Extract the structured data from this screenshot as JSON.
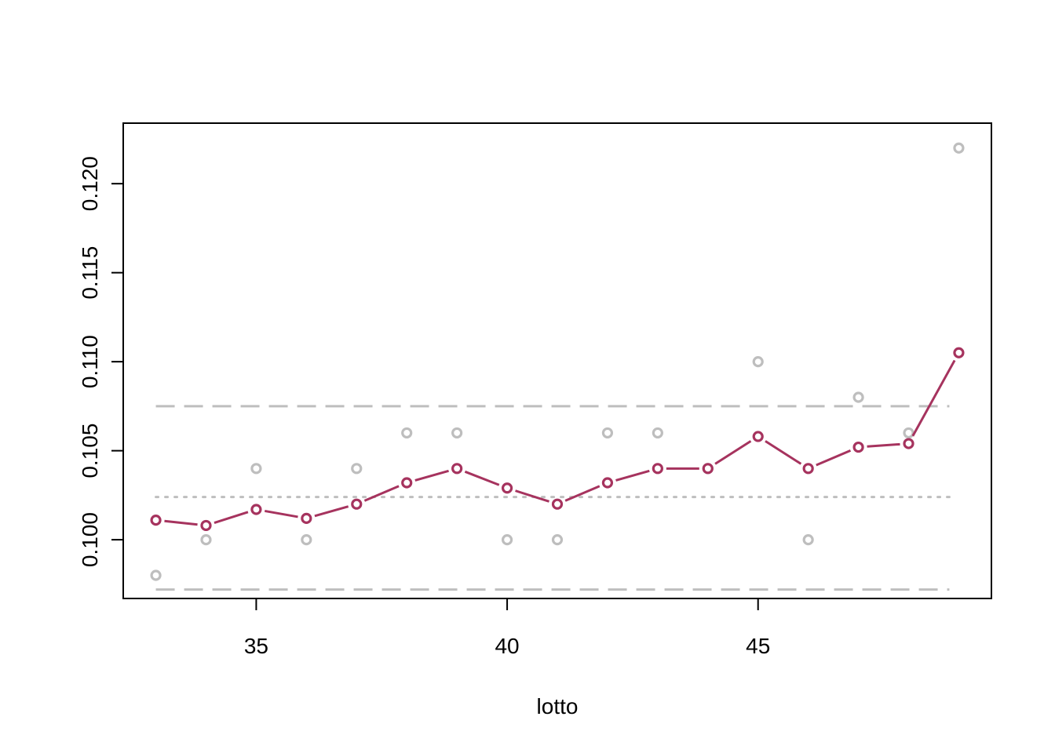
{
  "chart_data": {
    "type": "line",
    "title": "",
    "xlabel": "lotto",
    "ylabel": "",
    "xlim": [
      32.35,
      49.65
    ],
    "ylim": [
      0.0967,
      0.1234
    ],
    "x_ticks": [
      35,
      40,
      45
    ],
    "x_tick_labels": [
      "35",
      "40",
      "45"
    ],
    "y_ticks": [
      0.1,
      0.105,
      0.11,
      0.115,
      0.12
    ],
    "y_tick_labels": [
      "0.100",
      "0.105",
      "0.110",
      "0.115",
      "0.120"
    ],
    "grid": false,
    "legend": "none",
    "reference_lines": [
      {
        "kind": "upper-limit",
        "y": 0.1075,
        "style": "dashed",
        "color": "#bebebe"
      },
      {
        "kind": "center-line",
        "y": 0.1024,
        "style": "dotted",
        "color": "#bebebe"
      },
      {
        "kind": "lower-limit",
        "y": 0.0972,
        "style": "dashed",
        "color": "#bebebe"
      }
    ],
    "series": [
      {
        "style": "points",
        "color": "#bebebe",
        "x": [
          33,
          34,
          35,
          36,
          37,
          38,
          39,
          40,
          41,
          42,
          43,
          44,
          45,
          46,
          47,
          48,
          49
        ],
        "values": [
          0.098,
          0.1,
          0.104,
          0.1,
          0.104,
          0.106,
          0.106,
          0.1,
          0.1,
          0.106,
          0.106,
          0.104,
          0.11,
          0.1,
          0.108,
          0.106,
          0.122
        ]
      },
      {
        "style": "line+points",
        "color": "#a6335e",
        "x": [
          33,
          34,
          35,
          36,
          37,
          38,
          39,
          40,
          41,
          42,
          43,
          44,
          45,
          46,
          47,
          48,
          49
        ],
        "values": [
          0.1011,
          0.1008,
          0.1017,
          0.1012,
          0.102,
          0.1032,
          0.104,
          0.1029,
          0.102,
          0.1032,
          0.104,
          0.104,
          0.1058,
          0.104,
          0.1052,
          0.1054,
          0.1105
        ]
      }
    ]
  }
}
